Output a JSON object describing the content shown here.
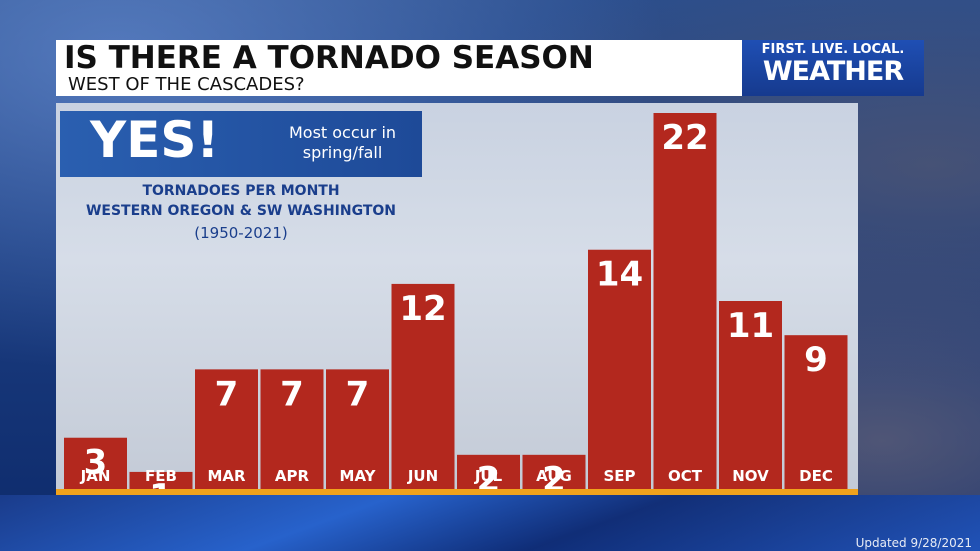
{
  "header": {
    "title": "IS THERE A TORNADO SEASON",
    "subtitle": "WEST OF THE CASCADES?"
  },
  "logo": {
    "tagline": "FIRST. LIVE. LOCAL.",
    "name": "WEATHER"
  },
  "callout": {
    "answer": "YES!",
    "note": "Most occur in spring/fall"
  },
  "info": {
    "line1": "TORNADOES PER MONTH",
    "line2": "WESTERN OREGON & SW WASHINGTON",
    "line3": "(1950-2021)"
  },
  "footer": {
    "updated": "Updated 9/28/2021"
  },
  "colors": {
    "bar": "#b3281e",
    "accent_blue": "#1e4a98",
    "baseline": "#f0a21c"
  },
  "chart_data": {
    "type": "bar",
    "title": "TORNADOES PER MONTH",
    "categories": [
      "JAN",
      "FEB",
      "MAR",
      "APR",
      "MAY",
      "JUN",
      "JUL",
      "AUG",
      "SEP",
      "OCT",
      "NOV",
      "DEC"
    ],
    "values": [
      3,
      1,
      7,
      7,
      7,
      12,
      2,
      2,
      14,
      22,
      11,
      9
    ],
    "ylim": [
      0,
      22
    ]
  }
}
